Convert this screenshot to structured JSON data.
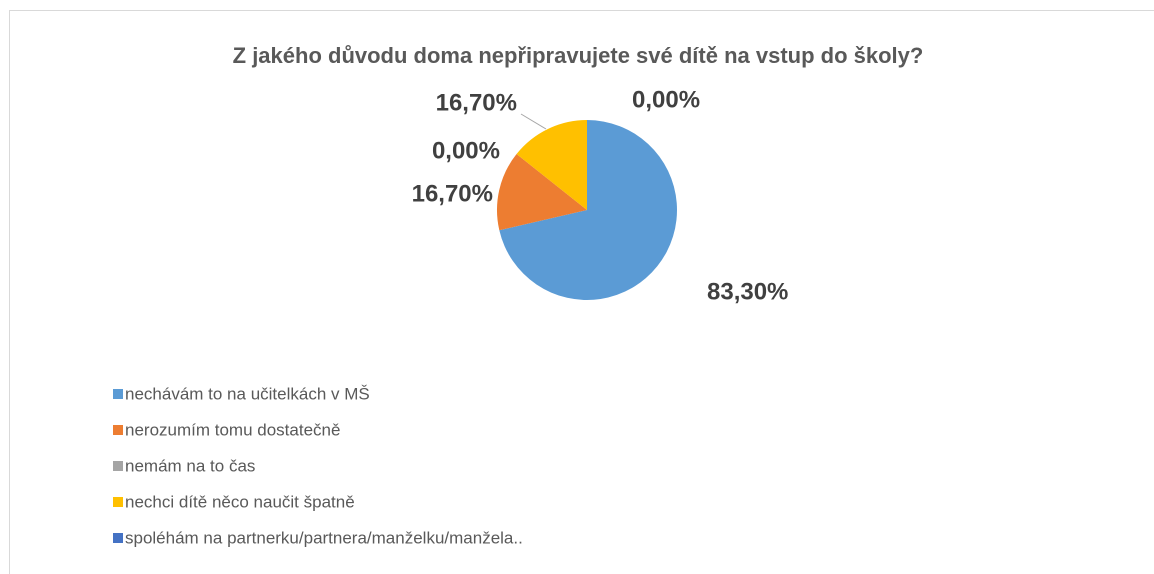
{
  "chart_data": {
    "type": "pie",
    "title": "Z jakého důvodu doma nepřipravujete své dítě na vstup do školy?",
    "categories": [
      "nechávám to na učitelkách v MŠ",
      "nerozumím tomu dostatečně",
      "nemám na to čas",
      "nechci dítě něco naučit špatně",
      "spoléhám na partnerku/partnera/manželku/manžela.."
    ],
    "values": [
      83.3,
      16.7,
      0,
      16.7,
      0
    ],
    "value_labels": [
      "83,30%",
      "16,70%",
      "0,00%",
      "16,70%",
      "0,00%"
    ],
    "colors": [
      "#5b9bd5",
      "#ed7d31",
      "#a5a5a5",
      "#ffc000",
      "#4472c4"
    ],
    "legend": "bottom-left"
  }
}
